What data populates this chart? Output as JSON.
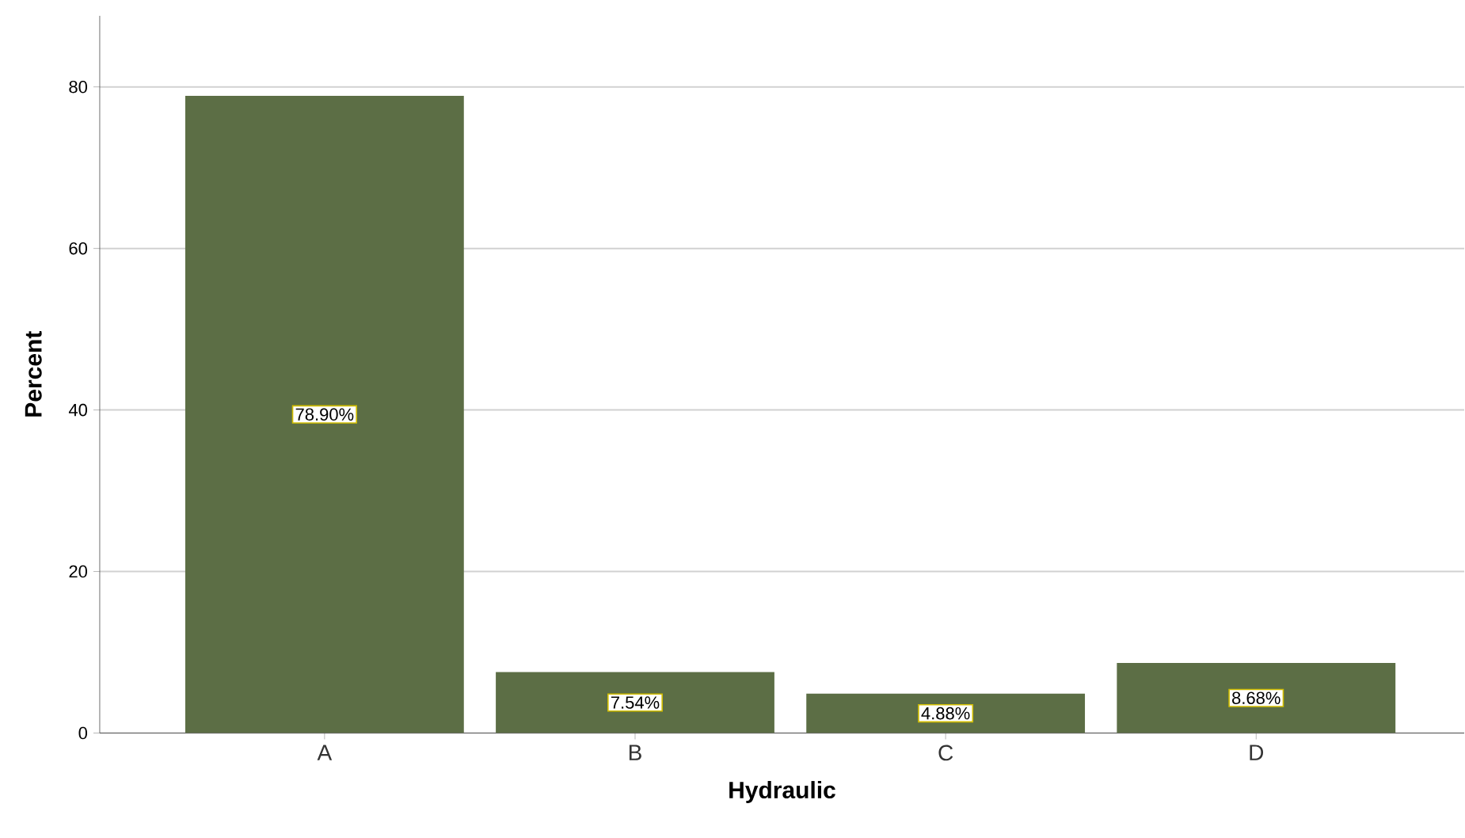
{
  "chart_data": {
    "type": "bar",
    "xlabel": "Hydraulic",
    "ylabel": "Percent",
    "categories": [
      "A",
      "B",
      "C",
      "D"
    ],
    "values": [
      78.9,
      7.54,
      4.88,
      8.68
    ],
    "value_labels": [
      "78.90%",
      "7.54%",
      "4.88%",
      "8.68%"
    ],
    "color": "#5c6e45",
    "ylim": [
      0,
      88.8
    ],
    "yticks": [
      0,
      20,
      40,
      60,
      80
    ],
    "grid": "y"
  }
}
